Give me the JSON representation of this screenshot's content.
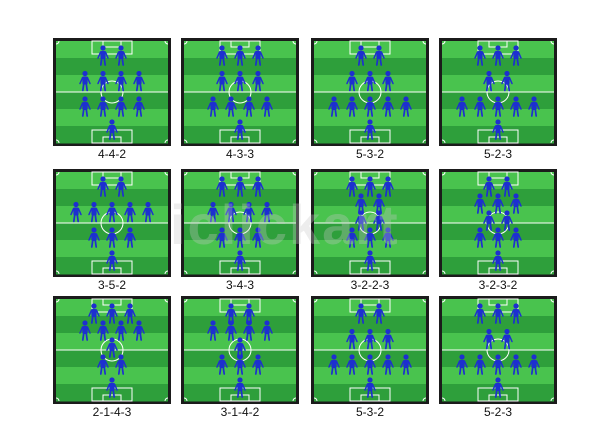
{
  "colors": {
    "frame": "#1b1b1b",
    "stripe_light": "#49c34e",
    "stripe_dark": "#2e9f3b",
    "lines": "#ffffff",
    "player": "#1d2fd0"
  },
  "player_icon": "person-silhouette-icon",
  "watermark": "iclickart",
  "formations": [
    {
      "label": "4-4-2",
      "lines": [
        4,
        4,
        2
      ]
    },
    {
      "label": "4-3-3",
      "lines": [
        4,
        3,
        3
      ]
    },
    {
      "label": "5-3-2",
      "lines": [
        5,
        3,
        2
      ]
    },
    {
      "label": "5-2-3",
      "lines": [
        5,
        2,
        3
      ]
    },
    {
      "label": "3-5-2",
      "lines": [
        3,
        5,
        2
      ]
    },
    {
      "label": "3-4-3",
      "lines": [
        3,
        4,
        3
      ]
    },
    {
      "label": "3-2-2-3",
      "lines": [
        3,
        2,
        2,
        3
      ]
    },
    {
      "label": "3-2-3-2",
      "lines": [
        3,
        2,
        3,
        2
      ]
    },
    {
      "label": "2-1-4-3",
      "lines": [
        2,
        1,
        4,
        3
      ]
    },
    {
      "label": "3-1-4-2",
      "lines": [
        3,
        1,
        4,
        2
      ]
    },
    {
      "label": "5-3-2",
      "lines": [
        5,
        3,
        2
      ]
    },
    {
      "label": "5-2-3",
      "lines": [
        5,
        2,
        3
      ]
    }
  ]
}
